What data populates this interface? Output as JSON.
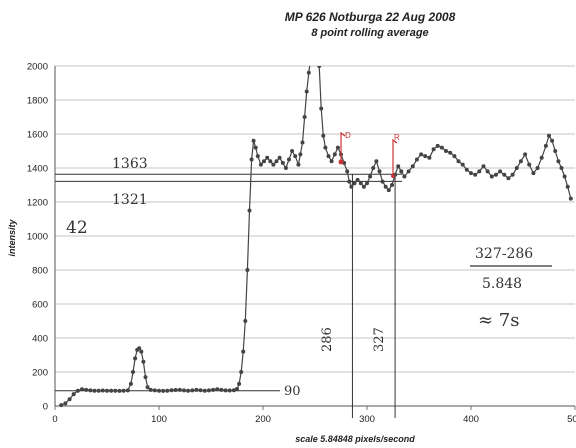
{
  "chart_data": {
    "type": "line",
    "title": "MP 626  Notburga 22 Aug 2008",
    "subtitle": "8 point rolling average",
    "xlabel": "scale 5.84848 pixels/second",
    "ylabel": "intensity",
    "xlim": [
      0,
      500
    ],
    "ylim": [
      0,
      2000
    ],
    "x_ticks": [
      "0",
      "100",
      "200",
      "300",
      "400",
      "500"
    ],
    "y_ticks": [
      "0",
      "200",
      "400",
      "600",
      "800",
      "1000",
      "1200",
      "1400",
      "1600",
      "1800",
      "2000"
    ],
    "grid": true,
    "marker_color": "#444444",
    "series": [
      {
        "points": [
          [
            6,
            5
          ],
          [
            10,
            15
          ],
          [
            14,
            40
          ],
          [
            18,
            70
          ],
          [
            22,
            90
          ],
          [
            26,
            98
          ],
          [
            30,
            95
          ],
          [
            34,
            92
          ],
          [
            38,
            90
          ],
          [
            42,
            90
          ],
          [
            46,
            91
          ],
          [
            50,
            90
          ],
          [
            54,
            90
          ],
          [
            58,
            90
          ],
          [
            62,
            89
          ],
          [
            66,
            90
          ],
          [
            70,
            92
          ],
          [
            73,
            130
          ],
          [
            75,
            200
          ],
          [
            77,
            280
          ],
          [
            79,
            330
          ],
          [
            81,
            340
          ],
          [
            83,
            320
          ],
          [
            85,
            260
          ],
          [
            87,
            170
          ],
          [
            89,
            110
          ],
          [
            92,
            95
          ],
          [
            96,
            92
          ],
          [
            100,
            90
          ],
          [
            104,
            89
          ],
          [
            108,
            90
          ],
          [
            112,
            93
          ],
          [
            116,
            94
          ],
          [
            120,
            95
          ],
          [
            124,
            92
          ],
          [
            128,
            90
          ],
          [
            132,
            92
          ],
          [
            136,
            95
          ],
          [
            140,
            93
          ],
          [
            144,
            90
          ],
          [
            148,
            92
          ],
          [
            152,
            95
          ],
          [
            156,
            98
          ],
          [
            160,
            95
          ],
          [
            164,
            92
          ],
          [
            168,
            91
          ],
          [
            172,
            93
          ],
          [
            175,
            100
          ],
          [
            177,
            130
          ],
          [
            179,
            200
          ],
          [
            181,
            320
          ],
          [
            183,
            500
          ],
          [
            185,
            800
          ],
          [
            187,
            1150
          ],
          [
            189,
            1450
          ],
          [
            191,
            1560
          ],
          [
            193,
            1520
          ],
          [
            195,
            1470
          ],
          [
            198,
            1420
          ],
          [
            201,
            1440
          ],
          [
            204,
            1460
          ],
          [
            207,
            1440
          ],
          [
            210,
            1420
          ],
          [
            213,
            1440
          ],
          [
            216,
            1460
          ],
          [
            219,
            1430
          ],
          [
            222,
            1400
          ],
          [
            225,
            1450
          ],
          [
            228,
            1500
          ],
          [
            231,
            1470
          ],
          [
            234,
            1420
          ],
          [
            236,
            1480
          ],
          [
            238,
            1550
          ],
          [
            240,
            1700
          ],
          [
            242,
            1850
          ],
          [
            244,
            1960
          ],
          [
            246,
            2050
          ],
          [
            248,
            2250
          ],
          [
            252,
            2250
          ],
          [
            254,
            2000
          ],
          [
            256,
            1750
          ],
          [
            258,
            1590
          ],
          [
            260,
            1520
          ],
          [
            263,
            1470
          ],
          [
            266,
            1440
          ],
          [
            269,
            1480
          ],
          [
            272,
            1520
          ],
          [
            275,
            1480
          ],
          [
            278,
            1430
          ],
          [
            281,
            1380
          ],
          [
            283,
            1320
          ],
          [
            285,
            1290
          ],
          [
            288,
            1310
          ],
          [
            291,
            1330
          ],
          [
            294,
            1310
          ],
          [
            297,
            1290
          ],
          [
            300,
            1310
          ],
          [
            303,
            1350
          ],
          [
            306,
            1400
          ],
          [
            309,
            1440
          ],
          [
            312,
            1380
          ],
          [
            315,
            1320
          ],
          [
            318,
            1290
          ],
          [
            321,
            1270
          ],
          [
            324,
            1300
          ],
          [
            327,
            1360
          ],
          [
            330,
            1410
          ],
          [
            333,
            1380
          ],
          [
            336,
            1350
          ],
          [
            340,
            1380
          ],
          [
            344,
            1410
          ],
          [
            348,
            1450
          ],
          [
            352,
            1480
          ],
          [
            356,
            1470
          ],
          [
            360,
            1460
          ],
          [
            364,
            1510
          ],
          [
            368,
            1530
          ],
          [
            372,
            1520
          ],
          [
            376,
            1500
          ],
          [
            380,
            1490
          ],
          [
            384,
            1470
          ],
          [
            388,
            1440
          ],
          [
            392,
            1420
          ],
          [
            396,
            1390
          ],
          [
            400,
            1370
          ],
          [
            404,
            1360
          ],
          [
            408,
            1380
          ],
          [
            412,
            1410
          ],
          [
            416,
            1380
          ],
          [
            420,
            1350
          ],
          [
            424,
            1360
          ],
          [
            428,
            1380
          ],
          [
            432,
            1360
          ],
          [
            436,
            1340
          ],
          [
            440,
            1360
          ],
          [
            444,
            1400
          ],
          [
            448,
            1440
          ],
          [
            452,
            1480
          ],
          [
            456,
            1420
          ],
          [
            460,
            1370
          ],
          [
            464,
            1400
          ],
          [
            468,
            1460
          ],
          [
            472,
            1530
          ],
          [
            475,
            1590
          ],
          [
            478,
            1560
          ],
          [
            481,
            1500
          ],
          [
            484,
            1440
          ],
          [
            487,
            1400
          ],
          [
            490,
            1350
          ],
          [
            493,
            1290
          ],
          [
            496,
            1220
          ]
        ]
      }
    ],
    "reference_lines": [
      {
        "y": 1363,
        "label": "1363"
      },
      {
        "y": 1321,
        "label": "1321"
      },
      {
        "y": 90,
        "label": "90"
      },
      {
        "x": 286,
        "label": "286"
      },
      {
        "x": 327,
        "label": "327"
      }
    ],
    "annotations": {
      "difference": "42",
      "marker_d": "D",
      "marker_r": "R",
      "formula_numerator": "327-286",
      "formula_denominator": "5.848",
      "result": "≈ 7s"
    }
  }
}
